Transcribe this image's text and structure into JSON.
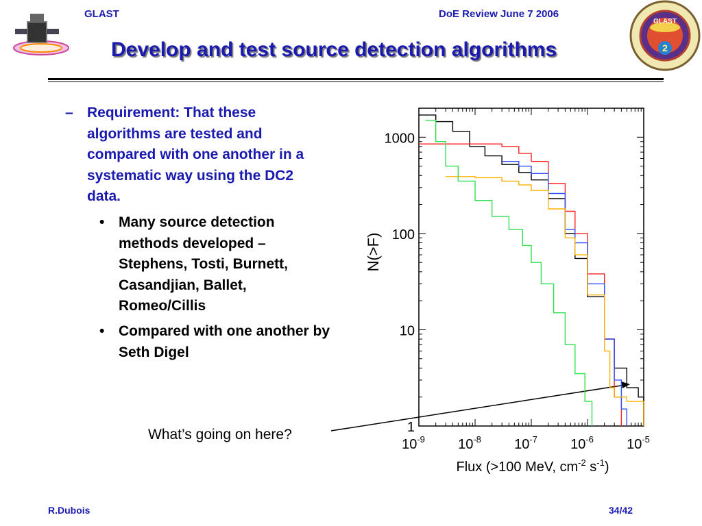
{
  "header": {
    "left": "GLAST",
    "right": "DoE Review June 7 2006",
    "title": "Develop and test source detection algorithms"
  },
  "bullets": {
    "main_dash": "–",
    "main": "Requirement: That these algorithms are tested and compared with one another in a systematic way using the DC2 data.",
    "sub_marker": "•",
    "sub": [
      "Many source detection methods developed – Stephens, Tosti, Burnett, Casandjian, Ballet, Romeo/Cillis",
      "Compared with one another by Seth Digel"
    ]
  },
  "annotation": "What’s going on here?",
  "footer": {
    "left": "R.Dubois",
    "right": "34/42"
  },
  "logo": {
    "top_text": "GLAST",
    "number": "2"
  },
  "colors": {
    "accent": "#1a1ab0",
    "series": [
      "#000000",
      "#ff2020",
      "#3050ff",
      "#ffb000",
      "#30e050"
    ]
  },
  "chart_data": {
    "type": "line",
    "xscale": "log",
    "yscale": "log",
    "xlabel": "Flux (>100 MeV, cm^-2 s^-1)",
    "ylabel": "N(>F)",
    "xlim": [
      1e-09,
      1e-05
    ],
    "ylim": [
      1,
      2000
    ],
    "xticks": [
      "10-9",
      "10-8",
      "10-7",
      "10-6",
      "10-5"
    ],
    "yticks": [
      "1",
      "10",
      "100",
      "1000"
    ],
    "series": [
      {
        "color": "#000000",
        "points": [
          [
            1e-09,
            1700
          ],
          [
            2e-09,
            1450
          ],
          [
            4e-09,
            1150
          ],
          [
            8e-09,
            800
          ],
          [
            1.5e-08,
            640
          ],
          [
            3e-08,
            520
          ],
          [
            6e-08,
            430
          ],
          [
            1e-07,
            360
          ],
          [
            2e-07,
            230
          ],
          [
            4e-07,
            100
          ],
          [
            6e-07,
            55
          ],
          [
            1e-06,
            22
          ],
          [
            2e-06,
            8
          ],
          [
            3e-06,
            4
          ],
          [
            5e-06,
            2.5
          ],
          [
            8e-06,
            2
          ],
          [
            1e-05,
            1.3
          ]
        ]
      },
      {
        "color": "#ff2020",
        "points": [
          [
            1e-09,
            850
          ],
          [
            1.5e-08,
            850
          ],
          [
            3e-08,
            800
          ],
          [
            6e-08,
            680
          ],
          [
            1e-07,
            560
          ],
          [
            2e-07,
            330
          ],
          [
            4e-07,
            170
          ],
          [
            6e-07,
            100
          ],
          [
            1e-06,
            38
          ],
          [
            2e-06,
            8
          ],
          [
            3e-06,
            2
          ],
          [
            4e-06,
            1
          ]
        ]
      },
      {
        "color": "#3050ff",
        "points": [
          [
            3e-08,
            560
          ],
          [
            6e-08,
            500
          ],
          [
            1e-07,
            420
          ],
          [
            2e-07,
            260
          ],
          [
            4e-07,
            110
          ],
          [
            6e-07,
            80
          ],
          [
            1e-06,
            30
          ],
          [
            2e-06,
            8
          ],
          [
            3e-06,
            3
          ],
          [
            4e-06,
            1.5
          ],
          [
            5e-06,
            1
          ]
        ]
      },
      {
        "color": "#ffb000",
        "points": [
          [
            3e-09,
            390
          ],
          [
            1e-08,
            380
          ],
          [
            3e-08,
            350
          ],
          [
            6e-08,
            320
          ],
          [
            1e-07,
            280
          ],
          [
            2e-07,
            180
          ],
          [
            4e-07,
            90
          ],
          [
            6e-07,
            60
          ],
          [
            1e-06,
            23
          ],
          [
            2e-06,
            6
          ],
          [
            2.5e-06,
            2.5
          ],
          [
            3e-06,
            2
          ],
          [
            5e-06,
            1.8
          ],
          [
            1e-05,
            1.8
          ]
        ]
      },
      {
        "color": "#30e050",
        "points": [
          [
            1.3e-09,
            1500
          ],
          [
            2e-09,
            900
          ],
          [
            3e-09,
            500
          ],
          [
            5e-09,
            350
          ],
          [
            1e-08,
            220
          ],
          [
            2e-08,
            150
          ],
          [
            4e-08,
            110
          ],
          [
            7e-08,
            75
          ],
          [
            1e-07,
            50
          ],
          [
            1.5e-07,
            30
          ],
          [
            2.5e-07,
            15
          ],
          [
            4e-07,
            7
          ],
          [
            6e-07,
            3.5
          ],
          [
            9e-07,
            1.8
          ],
          [
            1.2e-06,
            1
          ]
        ]
      }
    ]
  }
}
